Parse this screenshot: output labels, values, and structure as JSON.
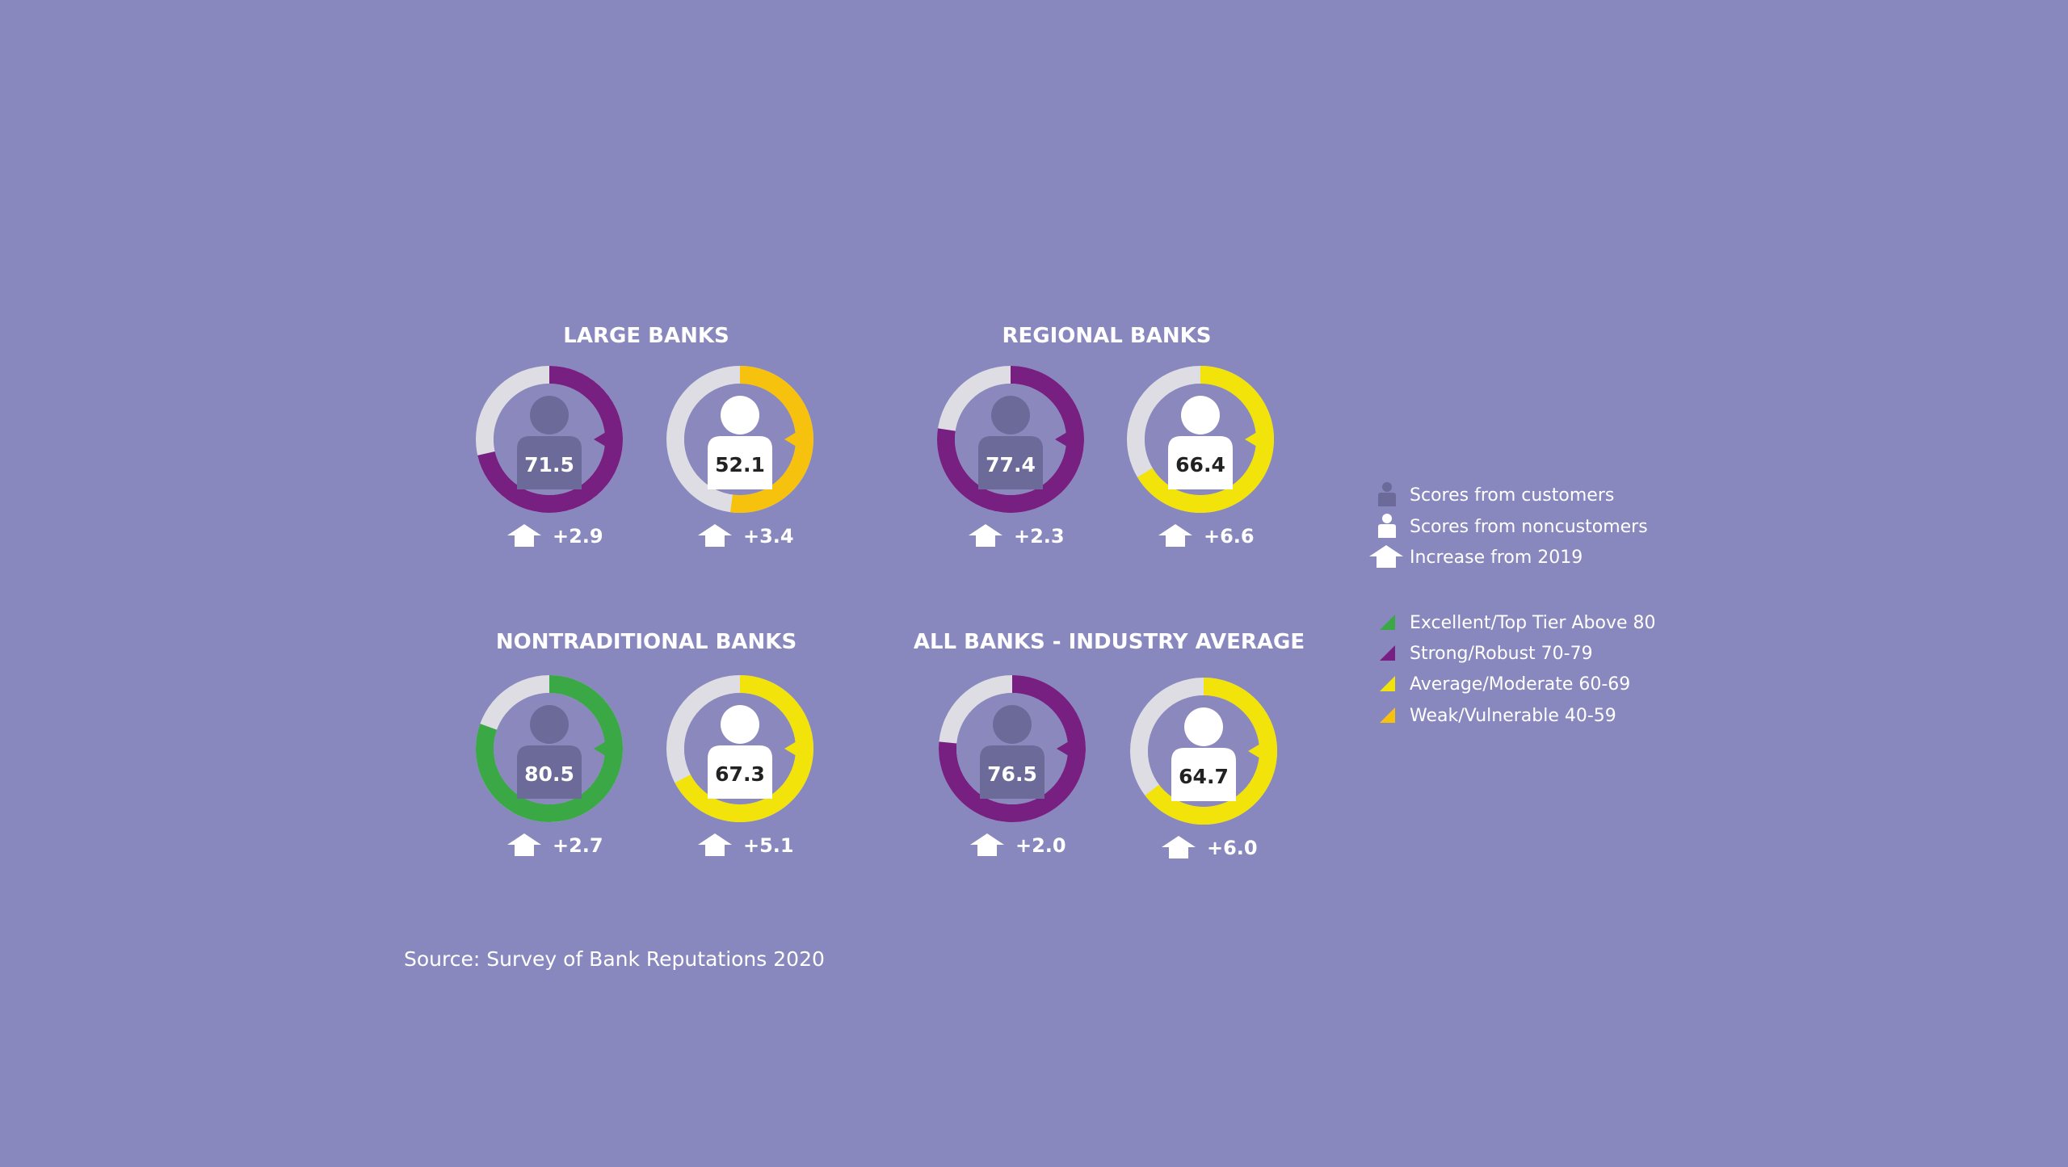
{
  "chart_data": {
    "type": "donut",
    "scale_max": 100,
    "groups": [
      {
        "title": "LARGE BANKS",
        "customers": {
          "value": 71.5,
          "change": "+2.9",
          "tier": "strong"
        },
        "noncustomers": {
          "value": 52.1,
          "change": "+3.4",
          "tier": "weak"
        }
      },
      {
        "title": "REGIONAL BANKS",
        "customers": {
          "value": 77.4,
          "change": "+2.3",
          "tier": "strong"
        },
        "noncustomers": {
          "value": 66.4,
          "change": "+6.6",
          "tier": "average"
        }
      },
      {
        "title": "NONTRADITIONAL BANKS",
        "customers": {
          "value": 80.5,
          "change": "+2.7",
          "tier": "excellent"
        },
        "noncustomers": {
          "value": 67.3,
          "change": "+5.1",
          "tier": "average"
        }
      },
      {
        "title": "ALL BANKS -  INDUSTRY AVERAGE",
        "customers": {
          "value": 76.5,
          "change": "+2.0",
          "tier": "strong"
        },
        "noncustomers": {
          "value": 64.7,
          "change": "+6.0",
          "tier": "average"
        }
      }
    ],
    "legend": {
      "placement": "right",
      "symbols": [
        {
          "icon": "customer-person-icon",
          "label": "Scores from customers"
        },
        {
          "icon": "noncustomer-person-icon",
          "label": "Scores from noncustomers"
        },
        {
          "icon": "increase-arrow-icon",
          "label": "Increase from 2019"
        }
      ],
      "tiers": [
        {
          "key": "excellent",
          "label": "Excellent/Top Tier Above 80",
          "color": "#39a845"
        },
        {
          "key": "strong",
          "label": "Strong/Robust 70-79",
          "color": "#782082"
        },
        {
          "key": "average",
          "label": "Average/Moderate 60-69",
          "color": "#f2e40a"
        },
        {
          "key": "weak",
          "label": "Weak/Vulnerable 40-59",
          "color": "#f7c20d"
        }
      ]
    },
    "source": "Source: Survey of Bank Reputations 2020"
  },
  "colors": {
    "background": "#8888bf",
    "track": "#dedde3",
    "inner_circle": "#8a88bc",
    "customer_icon": "#6b6a99",
    "noncustomer_icon": "#ffffff",
    "text": "#ffffff",
    "value_on_white": "#222222"
  }
}
